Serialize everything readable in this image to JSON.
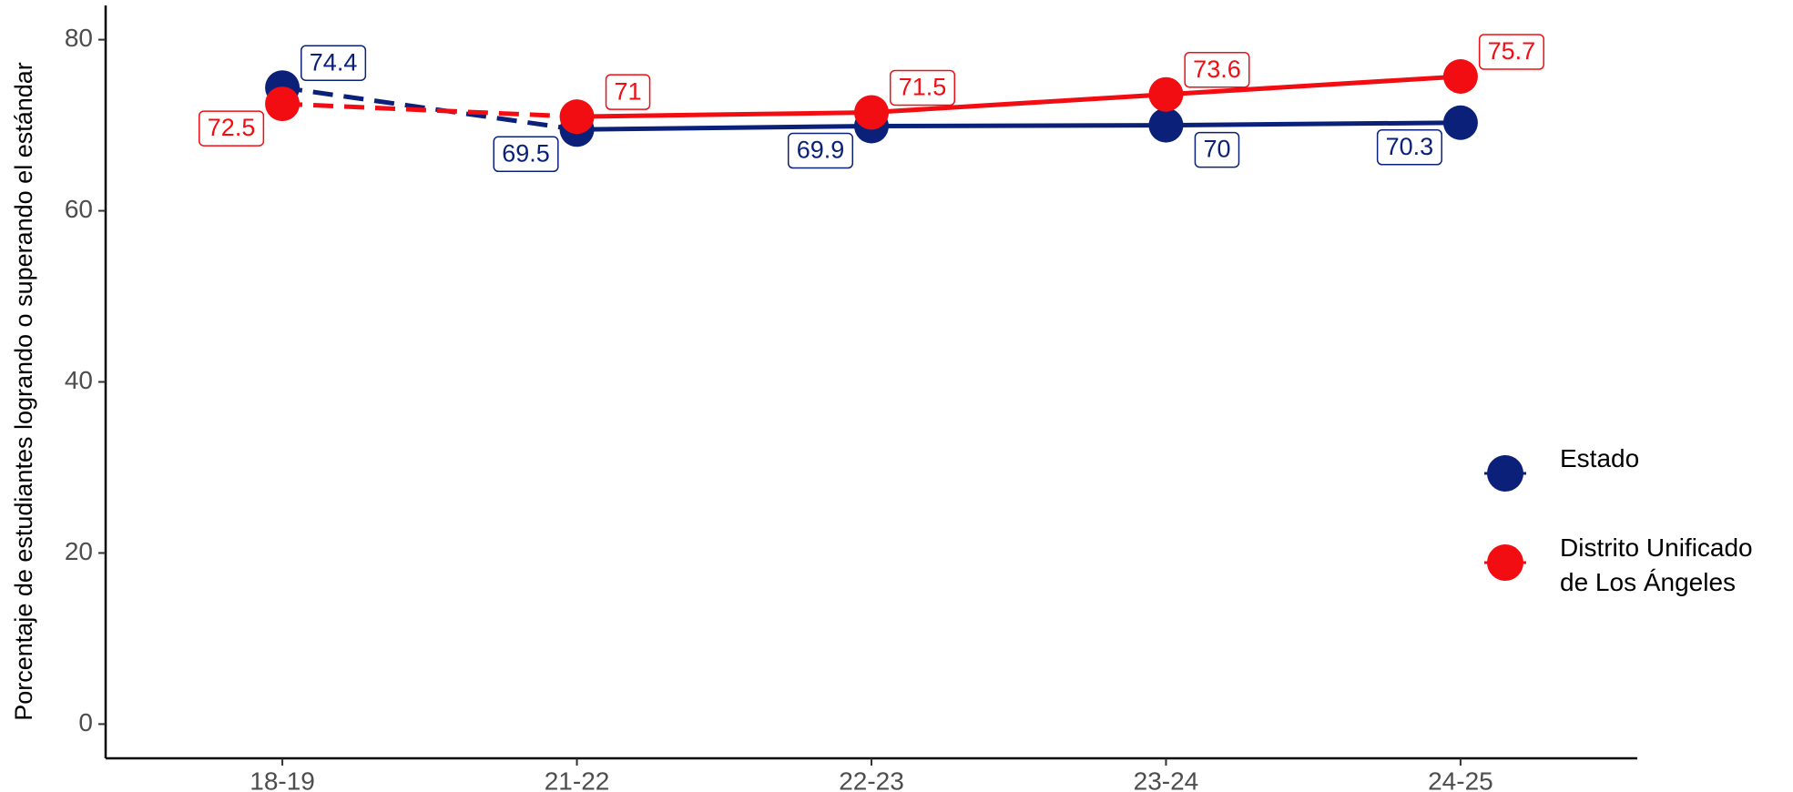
{
  "chart_data": {
    "type": "line",
    "y_label": "Porcentaje de estudiantes logrando o superando el estándar",
    "categories": [
      "18-19",
      "21-22",
      "22-23",
      "23-24",
      "24-25"
    ],
    "series": [
      {
        "name": "Estado",
        "color": "#0b2179",
        "values": [
          74.4,
          69.5,
          69.9,
          70,
          70.3
        ],
        "segment_styles": [
          "dashed",
          "solid",
          "solid",
          "solid"
        ]
      },
      {
        "name": "Distrito Unificado de Los Ángeles",
        "color": "#f20d12",
        "values": [
          72.5,
          71,
          71.5,
          73.6,
          75.7
        ],
        "segment_styles": [
          "dashed",
          "solid",
          "solid",
          "solid"
        ]
      }
    ],
    "ylim": [
      -4,
      84
    ],
    "yticks": [
      0,
      20,
      40,
      60,
      80
    ],
    "grid": false,
    "legend": "right"
  }
}
